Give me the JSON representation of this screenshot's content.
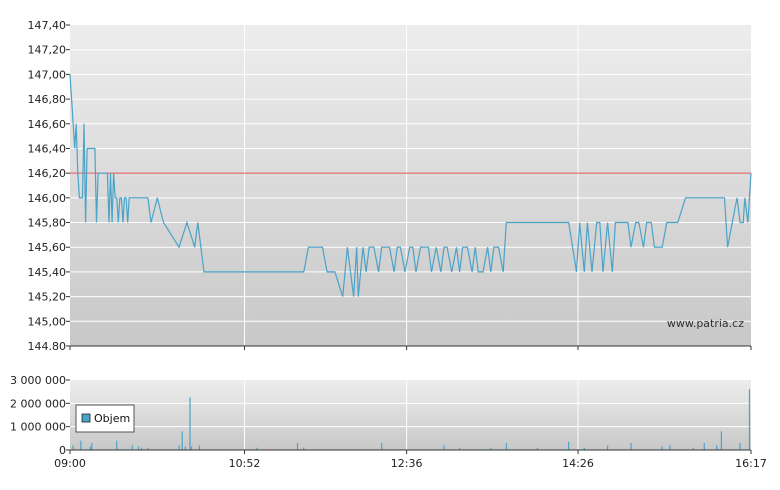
{
  "watermark": "www.patria.cz",
  "legend_label": "Objem",
  "chart_data": [
    {
      "type": "line",
      "name": "price",
      "y_tick_labels": [
        "147,40",
        "147,20",
        "147,00",
        "146,80",
        "146,60",
        "146,40",
        "146,20",
        "146,00",
        "145,80",
        "145,60",
        "145,40",
        "145,20",
        "145,00",
        "144.80"
      ],
      "ylim": [
        144.8,
        147.4
      ],
      "x_tick_labels": [
        "09:00",
        "10:52",
        "12:36",
        "14:26",
        "16:17"
      ],
      "x_tick_minutes": [
        540,
        652,
        756,
        866,
        977
      ],
      "xlim": [
        540,
        977
      ],
      "reference_line": 146.2,
      "reference_color": "#e05050",
      "series_color": "#4aa3c8",
      "grid": true,
      "x": [
        540,
        541,
        543,
        544,
        545,
        546,
        547,
        548,
        549,
        550,
        551,
        552,
        553,
        554,
        555,
        556,
        557,
        558,
        559,
        560,
        562,
        563,
        564,
        565,
        566,
        567,
        568,
        569,
        570,
        571,
        572,
        573,
        574,
        575,
        576,
        577,
        578,
        580,
        582,
        585,
        588,
        590,
        592,
        596,
        600,
        610,
        615,
        620,
        622,
        624,
        626,
        628,
        629,
        630,
        631,
        632,
        633,
        634,
        640,
        650,
        660,
        670,
        680,
        685,
        690,
        693,
        695,
        696,
        698,
        700,
        702,
        705,
        710,
        715,
        718,
        720,
        722,
        724,
        725,
        728,
        730,
        732,
        735,
        738,
        740,
        742,
        745,
        748,
        750,
        752,
        755,
        758,
        760,
        762,
        765,
        768,
        770,
        772,
        775,
        778,
        780,
        782,
        785,
        788,
        790,
        792,
        795,
        798,
        800,
        802,
        805,
        808,
        810,
        812,
        815,
        818,
        820,
        825,
        830,
        835,
        840,
        845,
        850,
        855,
        860,
        865,
        867,
        870,
        872,
        875,
        878,
        880,
        882,
        885,
        888,
        890,
        892,
        895,
        898,
        900,
        903,
        905,
        908,
        910,
        913,
        915,
        918,
        920,
        923,
        926,
        930,
        935,
        940,
        945,
        950,
        955,
        960,
        962,
        965,
        968,
        970,
        972,
        973,
        975,
        977
      ],
      "y": [
        147.0,
        146.8,
        146.4,
        146.6,
        146.2,
        146.0,
        146.0,
        146.0,
        146.6,
        145.8,
        146.4,
        146.4,
        146.4,
        146.4,
        146.4,
        146.4,
        145.8,
        146.2,
        146.2,
        146.2,
        146.2,
        146.2,
        146.2,
        145.8,
        146.2,
        145.8,
        146.2,
        146.0,
        146.0,
        145.8,
        146.0,
        146.0,
        145.8,
        146.0,
        146.0,
        145.8,
        146.0,
        146.0,
        146.0,
        146.0,
        146.0,
        146.0,
        145.8,
        146.0,
        145.8,
        145.6,
        145.8,
        145.6,
        145.8,
        145.6,
        145.4,
        145.4,
        145.4,
        145.4,
        145.4,
        145.4,
        145.4,
        145.4,
        145.4,
        145.4,
        145.4,
        145.4,
        145.4,
        145.4,
        145.4,
        145.6,
        145.6,
        145.6,
        145.6,
        145.6,
        145.6,
        145.4,
        145.4,
        145.2,
        145.6,
        145.4,
        145.2,
        145.6,
        145.2,
        145.6,
        145.4,
        145.6,
        145.6,
        145.4,
        145.6,
        145.6,
        145.6,
        145.4,
        145.6,
        145.6,
        145.4,
        145.6,
        145.6,
        145.4,
        145.6,
        145.6,
        145.6,
        145.4,
        145.6,
        145.4,
        145.6,
        145.6,
        145.4,
        145.6,
        145.4,
        145.6,
        145.6,
        145.4,
        145.6,
        145.4,
        145.4,
        145.6,
        145.4,
        145.6,
        145.6,
        145.4,
        145.8,
        145.8,
        145.8,
        145.8,
        145.8,
        145.8,
        145.8,
        145.8,
        145.8,
        145.4,
        145.8,
        145.4,
        145.8,
        145.4,
        145.8,
        145.8,
        145.4,
        145.8,
        145.4,
        145.8,
        145.8,
        145.8,
        145.8,
        145.6,
        145.8,
        145.8,
        145.6,
        145.8,
        145.8,
        145.6,
        145.6,
        145.6,
        145.8,
        145.8,
        145.8,
        146.0,
        146.0,
        146.0,
        146.0,
        146.0,
        146.0,
        145.6,
        145.8,
        146.0,
        145.8,
        145.8,
        146.0,
        145.8,
        146.2
      ]
    },
    {
      "type": "bar",
      "name": "volume",
      "series_name": "Objem",
      "y_tick_labels": [
        "3 000 000",
        "2 000 000",
        "1 000 000",
        "0"
      ],
      "ylim": [
        0,
        3000000
      ],
      "xlim": [
        540,
        977
      ],
      "series_color": "#4aa3c8",
      "grid": true,
      "x": [
        542,
        547,
        553,
        554,
        570,
        580,
        584,
        586,
        590,
        610,
        612,
        614,
        617,
        618,
        623,
        660,
        686,
        690,
        740,
        780,
        790,
        810,
        820,
        840,
        860,
        870,
        885,
        900,
        920,
        925,
        940,
        947,
        955,
        958,
        970,
        976
      ],
      "values": [
        200000,
        400000,
        150000,
        300000,
        400000,
        200000,
        150000,
        100000,
        100000,
        200000,
        800000,
        150000,
        2250000,
        150000,
        200000,
        100000,
        300000,
        100000,
        300000,
        200000,
        100000,
        100000,
        300000,
        100000,
        350000,
        100000,
        200000,
        300000,
        150000,
        200000,
        100000,
        300000,
        200000,
        800000,
        300000,
        2600000
      ]
    }
  ]
}
